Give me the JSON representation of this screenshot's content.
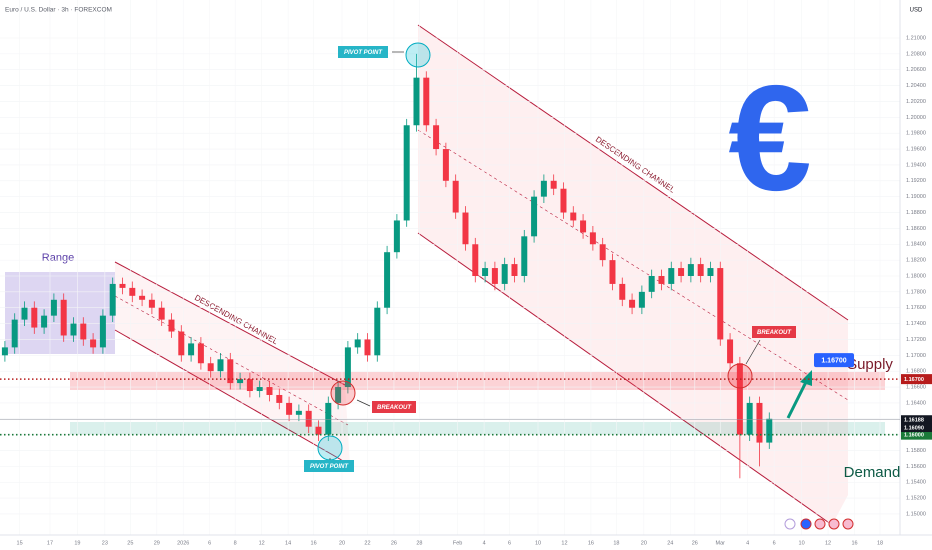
{
  "chart_data": {
    "type": "candlestick",
    "title": "Euro / U.S. Dollar · 3h · FOREXCOM",
    "currency": "USD",
    "up_color": "#089981",
    "down_color": "#f23645",
    "x": [
      0,
      1,
      2,
      3,
      4,
      5,
      6,
      7,
      8,
      9,
      10,
      11,
      12,
      13,
      14,
      15,
      16,
      17,
      18,
      19,
      20,
      21,
      22,
      23,
      24,
      25,
      26,
      27,
      28,
      29,
      30,
      31,
      32,
      33,
      34,
      35,
      36,
      37,
      38,
      39,
      40,
      41,
      42,
      43,
      44,
      45,
      46,
      47,
      48,
      49,
      50,
      51,
      52,
      53,
      54,
      55,
      56,
      57,
      58,
      59,
      60,
      61,
      62,
      63,
      64,
      65,
      66,
      67,
      68,
      69,
      70,
      71,
      72,
      73,
      74,
      75,
      76,
      77,
      78
    ],
    "open": [
      1.17,
      1.171,
      1.1745,
      1.176,
      1.1735,
      1.175,
      1.177,
      1.1725,
      1.174,
      1.172,
      1.171,
      1.175,
      1.179,
      1.1785,
      1.1775,
      1.177,
      1.176,
      1.1745,
      1.173,
      1.17,
      1.1715,
      1.169,
      1.168,
      1.1695,
      1.1665,
      1.167,
      1.1655,
      1.166,
      1.165,
      1.164,
      1.1625,
      1.163,
      1.161,
      1.16,
      1.164,
      1.166,
      1.171,
      1.172,
      1.17,
      1.176,
      1.183,
      1.187,
      1.199,
      1.205,
      1.199,
      1.196,
      1.192,
      1.188,
      1.184,
      1.18,
      1.181,
      1.179,
      1.1815,
      1.18,
      1.185,
      1.19,
      1.192,
      1.191,
      1.188,
      1.187,
      1.1855,
      1.184,
      1.182,
      1.179,
      1.177,
      1.176,
      1.178,
      1.18,
      1.179,
      1.181,
      1.18,
      1.1815,
      1.18,
      1.181,
      1.172,
      1.169,
      1.16,
      1.164,
      1.159
    ],
    "high": [
      1.1718,
      1.1753,
      1.1768,
      1.1768,
      1.1758,
      1.1778,
      1.1778,
      1.1748,
      1.1748,
      1.1728,
      1.1758,
      1.1798,
      1.1798,
      1.1793,
      1.1783,
      1.1778,
      1.1768,
      1.1753,
      1.1738,
      1.1723,
      1.1723,
      1.1698,
      1.1703,
      1.1703,
      1.1678,
      1.1678,
      1.1668,
      1.1668,
      1.1658,
      1.1648,
      1.1638,
      1.1638,
      1.1618,
      1.1648,
      1.1668,
      1.1718,
      1.1728,
      1.1728,
      1.1768,
      1.1838,
      1.1878,
      1.1998,
      1.208,
      1.2058,
      1.1998,
      1.1968,
      1.1928,
      1.1888,
      1.1848,
      1.1818,
      1.1818,
      1.1823,
      1.1823,
      1.1858,
      1.1908,
      1.1928,
      1.1928,
      1.1918,
      1.1888,
      1.1878,
      1.1863,
      1.1848,
      1.1828,
      1.1798,
      1.1778,
      1.1788,
      1.1808,
      1.1808,
      1.1818,
      1.1818,
      1.1823,
      1.1823,
      1.1818,
      1.1818,
      1.1728,
      1.1698,
      1.1648,
      1.1648,
      1.1628
    ],
    "low": [
      1.1692,
      1.1702,
      1.1737,
      1.1727,
      1.1727,
      1.1742,
      1.1717,
      1.1717,
      1.1712,
      1.1702,
      1.1702,
      1.1742,
      1.1777,
      1.1767,
      1.1762,
      1.1752,
      1.1737,
      1.1722,
      1.1692,
      1.1692,
      1.1682,
      1.1672,
      1.1672,
      1.1657,
      1.1657,
      1.1647,
      1.1647,
      1.1642,
      1.1632,
      1.1617,
      1.1617,
      1.1602,
      1.1592,
      1.1592,
      1.1632,
      1.1652,
      1.1702,
      1.1692,
      1.1692,
      1.1752,
      1.1822,
      1.1862,
      1.1982,
      1.1982,
      1.1952,
      1.1912,
      1.1872,
      1.1832,
      1.1792,
      1.1792,
      1.1782,
      1.1782,
      1.1792,
      1.1792,
      1.1842,
      1.1892,
      1.1902,
      1.1872,
      1.1862,
      1.1847,
      1.1832,
      1.1812,
      1.1782,
      1.1762,
      1.1752,
      1.1752,
      1.1772,
      1.1782,
      1.1782,
      1.1792,
      1.1792,
      1.1792,
      1.1792,
      1.1712,
      1.1682,
      1.1545,
      1.1592,
      1.156,
      1.1582
    ],
    "close": [
      1.171,
      1.1745,
      1.176,
      1.1735,
      1.175,
      1.177,
      1.1725,
      1.174,
      1.172,
      1.171,
      1.175,
      1.179,
      1.1785,
      1.1775,
      1.177,
      1.176,
      1.1745,
      1.173,
      1.17,
      1.1715,
      1.169,
      1.168,
      1.1695,
      1.1665,
      1.167,
      1.1655,
      1.166,
      1.165,
      1.164,
      1.1625,
      1.163,
      1.161,
      1.16,
      1.164,
      1.166,
      1.171,
      1.172,
      1.17,
      1.176,
      1.183,
      1.187,
      1.199,
      1.205,
      1.199,
      1.196,
      1.192,
      1.188,
      1.184,
      1.18,
      1.181,
      1.179,
      1.1815,
      1.18,
      1.185,
      1.19,
      1.192,
      1.191,
      1.188,
      1.187,
      1.1855,
      1.184,
      1.182,
      1.179,
      1.177,
      1.176,
      1.178,
      1.18,
      1.179,
      1.181,
      1.18,
      1.1815,
      1.18,
      1.181,
      1.172,
      1.169,
      1.16,
      1.164,
      1.159,
      1.162
    ],
    "xlim": [
      -0.5,
      91.34
    ],
    "ylim": [
      1.14735,
      1.21479
    ],
    "xticks": [
      {
        "value": 1.5,
        "label": "15"
      },
      {
        "value": 4.6,
        "label": "17"
      },
      {
        "value": 7.4,
        "label": "19"
      },
      {
        "value": 10.2,
        "label": "23"
      },
      {
        "value": 12.8,
        "label": "25"
      },
      {
        "value": 15.5,
        "label": "29"
      },
      {
        "value": 18.2,
        "label": "2026"
      },
      {
        "value": 20.9,
        "label": "6"
      },
      {
        "value": 23.5,
        "label": "8"
      },
      {
        "value": 26.2,
        "label": "12"
      },
      {
        "value": 28.9,
        "label": "14"
      },
      {
        "value": 31.5,
        "label": "16"
      },
      {
        "value": 34.4,
        "label": "20"
      },
      {
        "value": 37,
        "label": "22"
      },
      {
        "value": 39.7,
        "label": "26"
      },
      {
        "value": 42.3,
        "label": "28"
      },
      {
        "value": 46.2,
        "label": "Feb"
      },
      {
        "value": 48.9,
        "label": "4"
      },
      {
        "value": 51.5,
        "label": "6"
      },
      {
        "value": 54.4,
        "label": "10"
      },
      {
        "value": 57.1,
        "label": "12"
      },
      {
        "value": 59.8,
        "label": "16"
      },
      {
        "value": 62.4,
        "label": "18"
      },
      {
        "value": 65.2,
        "label": "20"
      },
      {
        "value": 67.9,
        "label": "24"
      },
      {
        "value": 70.4,
        "label": "26"
      },
      {
        "value": 73,
        "label": "Mar"
      },
      {
        "value": 75.8,
        "label": "4"
      },
      {
        "value": 78.5,
        "label": "6"
      },
      {
        "value": 81.3,
        "label": "10"
      },
      {
        "value": 84,
        "label": "12"
      },
      {
        "value": 86.7,
        "label": "16"
      },
      {
        "value": 89.3,
        "label": "18"
      }
    ],
    "yticks": [
      {
        "value": 1.15,
        "label": "1.15000"
      },
      {
        "value": 1.152,
        "label": "1.15200"
      },
      {
        "value": 1.154,
        "label": "1.15400"
      },
      {
        "value": 1.156,
        "label": "1.15600"
      },
      {
        "value": 1.158,
        "label": "1.15800"
      },
      {
        "value": 1.16,
        "label": "1.16000"
      },
      {
        "value": 1.162,
        "label": "1.16200"
      },
      {
        "value": 1.164,
        "label": "1.16400"
      },
      {
        "value": 1.166,
        "label": "1.16600"
      },
      {
        "value": 1.168,
        "label": "1.16800"
      },
      {
        "value": 1.17,
        "label": "1.17000"
      },
      {
        "value": 1.172,
        "label": "1.17200"
      },
      {
        "value": 1.174,
        "label": "1.17400"
      },
      {
        "value": 1.176,
        "label": "1.17600"
      },
      {
        "value": 1.178,
        "label": "1.17800"
      },
      {
        "value": 1.18,
        "label": "1.18000"
      },
      {
        "value": 1.182,
        "label": "1.18200"
      },
      {
        "value": 1.184,
        "label": "1.18400"
      },
      {
        "value": 1.186,
        "label": "1.18600"
      },
      {
        "value": 1.188,
        "label": "1.18800"
      },
      {
        "value": 1.19,
        "label": "1.19000"
      },
      {
        "value": 1.192,
        "label": "1.19200"
      },
      {
        "value": 1.194,
        "label": "1.19400"
      },
      {
        "value": 1.196,
        "label": "1.19600"
      },
      {
        "value": 1.198,
        "label": "1.19800"
      },
      {
        "value": 1.2,
        "label": "1.20000"
      },
      {
        "value": 1.202,
        "label": "1.20200"
      },
      {
        "value": 1.204,
        "label": "1.20400"
      },
      {
        "value": 1.206,
        "label": "1.20600"
      },
      {
        "value": 1.208,
        "label": "1.20800"
      },
      {
        "value": 1.21,
        "label": "1.21000"
      }
    ],
    "levels": [
      {
        "value": 1.167,
        "label": "1.16700",
        "color": "#b71c1c"
      },
      {
        "value": 1.16,
        "label": "1.16000",
        "color": "#1b7a3a"
      }
    ],
    "price_tags": [
      {
        "value": 1.16188,
        "label": "1.16188",
        "color": "#131722"
      },
      {
        "value": 1.1609,
        "label": "1.16090",
        "color": "#131722"
      }
    ],
    "target": {
      "value": 1.167,
      "label": "1.16700"
    },
    "annotations": {
      "range": "Range",
      "channel_small": "DESCENDING CHANNEL",
      "channel_big": "DESCENDING CHANNEL",
      "pivot_top": "PIVOT POINT",
      "pivot_bottom": "PIVOT POINT",
      "breakout_left": "BREAKOUT",
      "breakout_right": "BREAKOUT",
      "supply": "Supply",
      "demand": "Demand",
      "symbol": "€"
    }
  }
}
